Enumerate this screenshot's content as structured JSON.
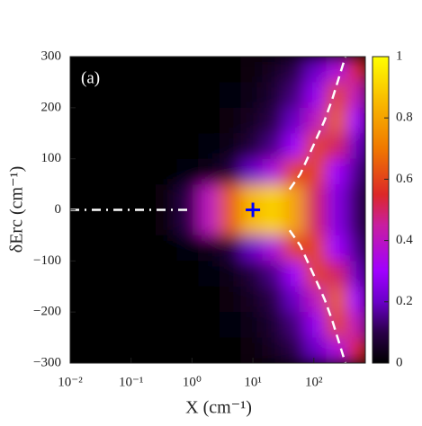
{
  "chart_data": {
    "type": "heatmap",
    "annotation": "(a)",
    "xlabel": "X (cm⁻¹)",
    "ylabel": "δErc (cm⁻¹)",
    "xscale": "log",
    "xlim": [
      0.01,
      700
    ],
    "ylim": [
      -300,
      300
    ],
    "xticks": [
      {
        "value": 0.01,
        "label": "10⁻²"
      },
      {
        "value": 0.1,
        "label": "10⁻¹"
      },
      {
        "value": 1,
        "label": "10⁰"
      },
      {
        "value": 10,
        "label": "10¹"
      },
      {
        "value": 100,
        "label": "10²"
      }
    ],
    "yticks": [
      {
        "value": -300,
        "label": "−300"
      },
      {
        "value": -200,
        "label": "−200"
      },
      {
        "value": -100,
        "label": "−100"
      },
      0,
      100,
      200,
      300
    ],
    "x_edges": [
      0.01,
      0.0224,
      0.0501,
      0.112,
      0.251,
      0.562,
      1.26,
      2.82,
      6.31,
      14.1,
      31.6,
      70.8,
      158,
      355,
      794
    ],
    "y_edges": [
      300,
      250,
      200,
      150,
      100,
      50,
      0,
      -50,
      -100,
      -150,
      -200,
      -250,
      -300
    ],
    "z": [
      [
        0,
        0,
        0,
        0,
        0,
        0,
        0,
        0,
        0.02,
        0.05,
        0.1,
        0.2,
        0.35,
        0.55
      ],
      [
        0,
        0,
        0,
        0,
        0,
        0,
        0,
        0.01,
        0.03,
        0.07,
        0.14,
        0.28,
        0.6,
        0.4
      ],
      [
        0,
        0,
        0,
        0,
        0,
        0,
        0,
        0.02,
        0.05,
        0.1,
        0.2,
        0.4,
        0.65,
        0.3
      ],
      [
        0,
        0,
        0,
        0,
        0,
        0,
        0.01,
        0.03,
        0.08,
        0.15,
        0.3,
        0.6,
        0.5,
        0.2
      ],
      [
        0,
        0,
        0,
        0,
        0,
        0.01,
        0.03,
        0.08,
        0.2,
        0.35,
        0.6,
        0.6,
        0.3,
        0.15
      ],
      [
        0,
        0,
        0,
        0,
        0.02,
        0.1,
        0.4,
        0.65,
        0.85,
        0.9,
        0.8,
        0.5,
        0.25,
        0.12
      ],
      [
        0,
        0,
        0,
        0,
        0.02,
        0.1,
        0.4,
        0.65,
        0.85,
        0.9,
        0.8,
        0.5,
        0.25,
        0.12
      ],
      [
        0,
        0,
        0,
        0,
        0,
        0.01,
        0.03,
        0.08,
        0.2,
        0.35,
        0.6,
        0.6,
        0.3,
        0.15
      ],
      [
        0,
        0,
        0,
        0,
        0,
        0,
        0.01,
        0.03,
        0.08,
        0.15,
        0.3,
        0.6,
        0.5,
        0.2
      ],
      [
        0,
        0,
        0,
        0,
        0,
        0,
        0,
        0.02,
        0.05,
        0.1,
        0.2,
        0.4,
        0.65,
        0.3
      ],
      [
        0,
        0,
        0,
        0,
        0,
        0,
        0,
        0.01,
        0.03,
        0.07,
        0.14,
        0.28,
        0.6,
        0.4
      ],
      [
        0,
        0,
        0,
        0,
        0,
        0,
        0,
        0,
        0.02,
        0.05,
        0.1,
        0.2,
        0.35,
        0.55
      ]
    ],
    "colormap": [
      [
        0,
        "#000000"
      ],
      [
        0.1,
        "#2a0048"
      ],
      [
        0.2,
        "#6a00c8"
      ],
      [
        0.3,
        "#a000ff"
      ],
      [
        0.45,
        "#c81ea0"
      ],
      [
        0.55,
        "#dc2828"
      ],
      [
        0.7,
        "#f07800"
      ],
      [
        0.85,
        "#f8b800"
      ],
      [
        1,
        "#ffff00"
      ]
    ],
    "zlim": [
      0,
      1
    ],
    "zticks": [
      0,
      0.2,
      0.4,
      0.6,
      0.8,
      1
    ],
    "lines": [
      {
        "color": "#ffffff",
        "dash": "10,6,2,6",
        "x": [
          0.01,
          1
        ],
        "y": [
          0,
          0
        ]
      },
      {
        "color": "#ffffff",
        "dash": "10,6",
        "x": [
          40,
          60,
          100,
          150,
          200,
          260,
          330
        ],
        "y": [
          40,
          70,
          128,
          175,
          216,
          260,
          300
        ]
      },
      {
        "color": "#ffffff",
        "dash": "10,6",
        "x": [
          40,
          60,
          100,
          150,
          200,
          260,
          330
        ],
        "y": [
          -40,
          -70,
          -128,
          -175,
          -216,
          -260,
          -300
        ]
      }
    ],
    "marker": {
      "x": 10,
      "y": 0,
      "color": "#0000ff"
    }
  }
}
